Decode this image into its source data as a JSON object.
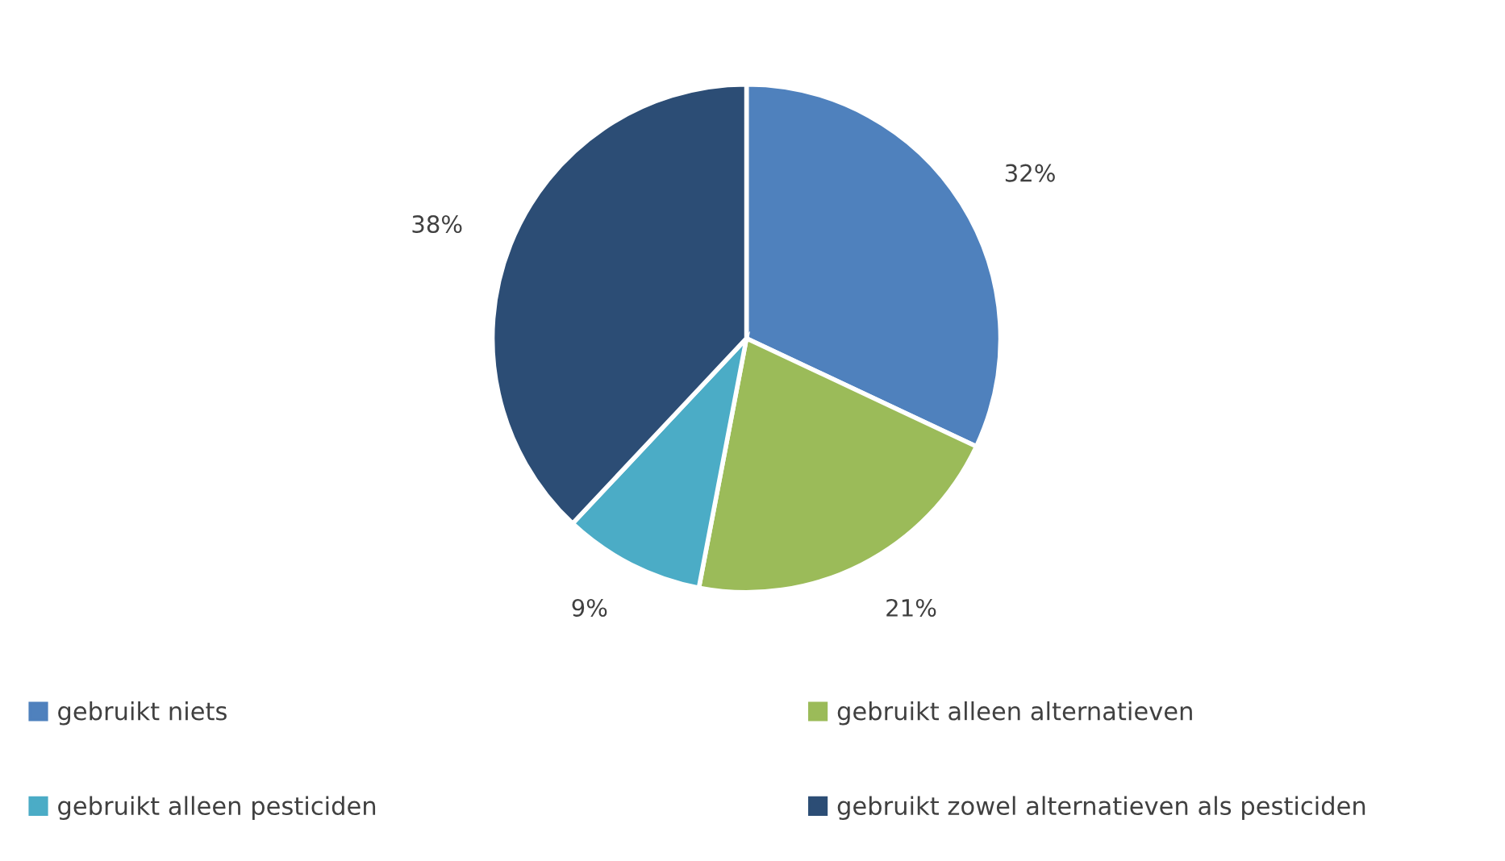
{
  "chart_data": {
    "type": "pie",
    "categories": [
      "gebruikt niets",
      "gebruikt alleen alternatieven",
      "gebruikt alleen pesticiden",
      "gebruikt zowel alternatieven als pesticiden"
    ],
    "values": [
      32,
      21,
      9,
      38
    ],
    "colors": [
      "#4f81bd",
      "#9bbb59",
      "#4bacc6",
      "#2c4d75"
    ],
    "value_labels": [
      "32%",
      "21%",
      "9%",
      "38%"
    ],
    "legend": "bottom"
  }
}
